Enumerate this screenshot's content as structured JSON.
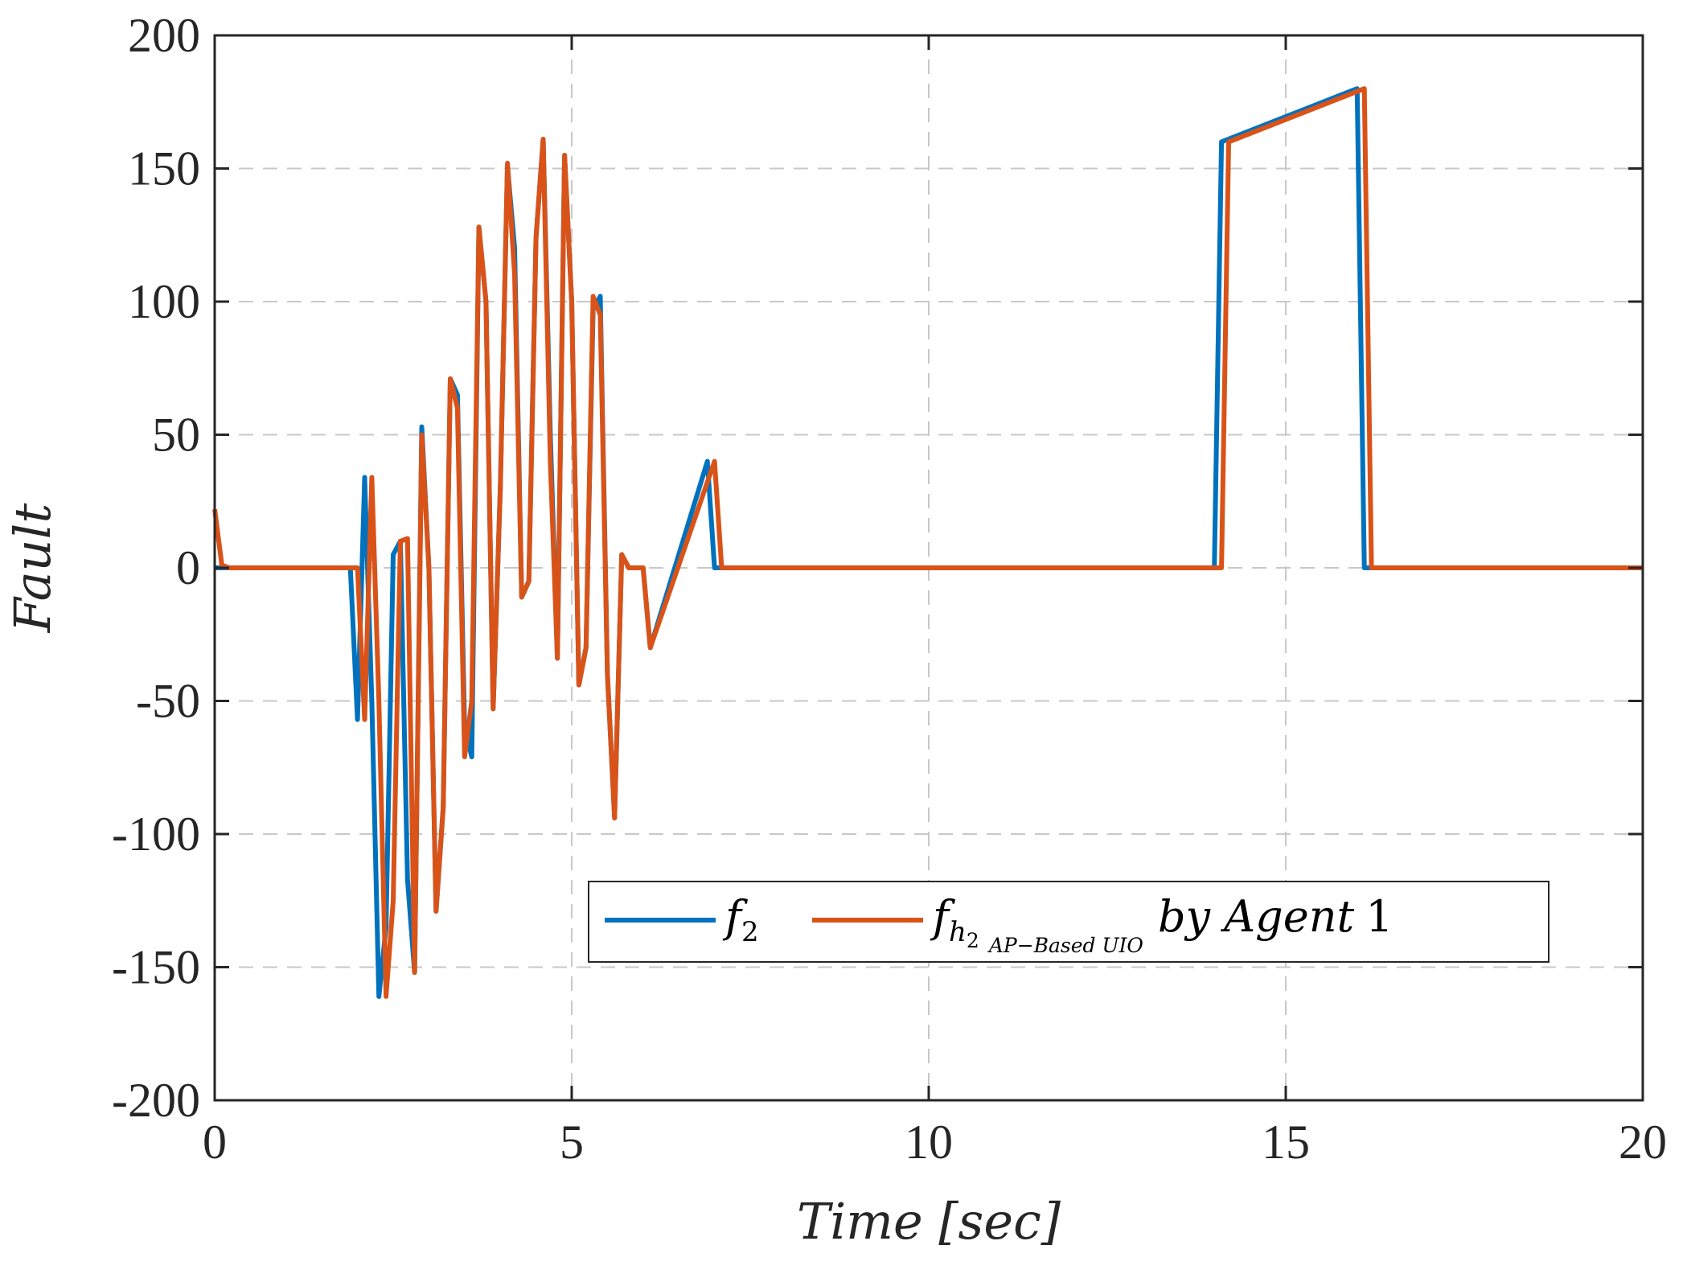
{
  "chart_data": {
    "type": "line",
    "title": "",
    "xlabel": "Time [sec]",
    "ylabel": "Fault",
    "xlim": [
      0,
      20
    ],
    "ylim": [
      -200,
      200
    ],
    "xticks": [
      0,
      5,
      10,
      15,
      20
    ],
    "yticks": [
      200,
      150,
      100,
      50,
      0,
      -50,
      -100,
      -150,
      -200
    ],
    "grid": true,
    "legend_position": "lower-right",
    "colors": {
      "f2": "#0072BD",
      "fh2": "#D95319"
    },
    "legend": {
      "f2_base": "f",
      "f2_sub": "2",
      "fh2_base": "f",
      "fh2_sub_h": "h",
      "fh2_sub_h_sub": "2",
      "fh2_sub_text": "AP−Based  UIO",
      "by_text": "by Agent",
      "agent_number": "1"
    },
    "series": [
      {
        "name": "f2",
        "x": [
          0,
          0.1,
          1.9,
          2.0,
          2.1,
          2.2,
          2.3,
          2.4,
          2.5,
          2.6,
          2.7,
          2.8,
          2.9,
          3.0,
          3.1,
          3.2,
          3.3,
          3.4,
          3.5,
          3.6,
          3.7,
          3.8,
          3.9,
          4.0,
          4.1,
          4.2,
          4.3,
          4.4,
          4.5,
          4.6,
          4.7,
          4.8,
          4.9,
          5.0,
          5.1,
          5.2,
          5.3,
          5.4,
          5.5,
          5.6,
          5.7,
          5.8,
          5.9,
          6.0,
          6.1,
          6.9,
          7.0,
          14.0,
          14.1,
          16.0,
          16.1,
          18.0,
          18.1,
          20.0
        ],
        "y": [
          0,
          0,
          0,
          -57,
          34,
          -50,
          -161,
          -135,
          5,
          10,
          -117,
          -152,
          53,
          0,
          -129,
          -90,
          71,
          65,
          -60,
          -71,
          128,
          100,
          -53,
          30,
          151,
          120,
          -11,
          -5,
          124,
          161,
          50,
          -34,
          155,
          100,
          -44,
          -30,
          97,
          102,
          -40,
          -94,
          5,
          0,
          0,
          0,
          -30,
          40,
          0,
          0,
          160,
          180,
          0,
          0,
          0,
          0
        ]
      },
      {
        "name": "fh2",
        "x": [
          0,
          0.1,
          0.2,
          2.0,
          2.1,
          2.2,
          2.3,
          2.4,
          2.5,
          2.6,
          2.7,
          2.8,
          2.9,
          3.0,
          3.1,
          3.2,
          3.3,
          3.4,
          3.5,
          3.6,
          3.7,
          3.8,
          3.9,
          4.0,
          4.1,
          4.2,
          4.3,
          4.4,
          4.5,
          4.6,
          4.7,
          4.8,
          4.9,
          5.0,
          5.1,
          5.2,
          5.3,
          5.4,
          5.5,
          5.6,
          5.7,
          5.8,
          5.9,
          6.0,
          6.1,
          7.0,
          7.1,
          14.1,
          14.2,
          16.1,
          16.2,
          18.1,
          18.2,
          20.0
        ],
        "y": [
          22,
          1,
          0,
          0,
          -57,
          34,
          -50,
          -161,
          -125,
          10,
          11,
          -152,
          50,
          0,
          -129,
          -90,
          71,
          60,
          -71,
          -50,
          128,
          100,
          -53,
          30,
          152,
          110,
          -11,
          -5,
          124,
          161,
          40,
          -34,
          155,
          100,
          -44,
          -30,
          102,
          95,
          -40,
          -94,
          5,
          0,
          0,
          0,
          -30,
          40,
          0,
          0,
          160,
          180,
          0,
          0,
          0,
          0
        ]
      }
    ]
  }
}
